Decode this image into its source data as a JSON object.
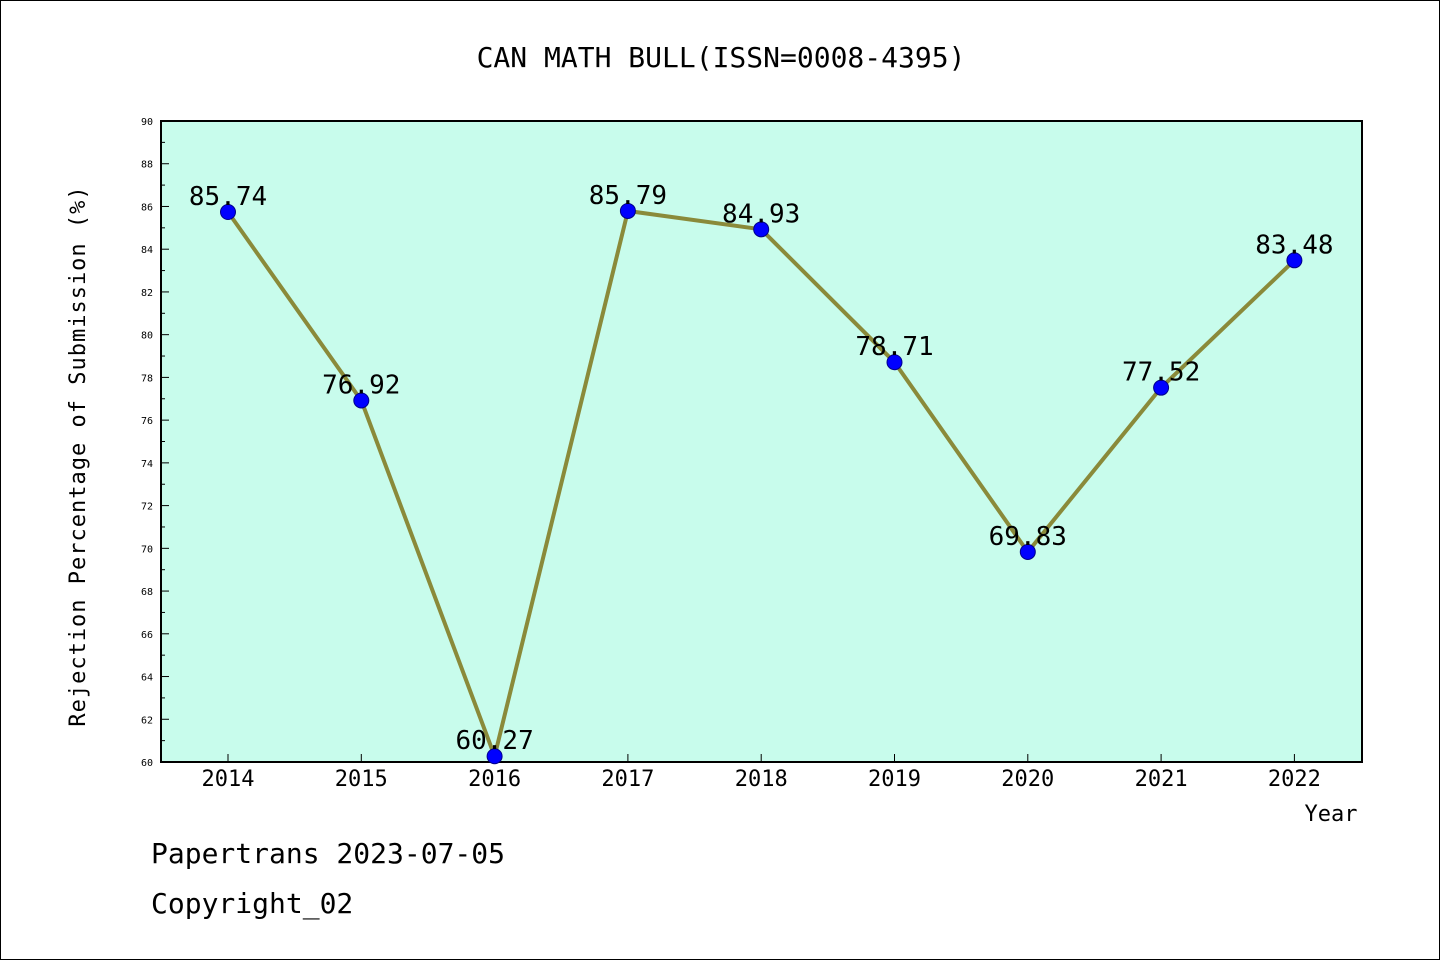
{
  "colors": {
    "plot_background": "#c8fcec",
    "line": "#8a8a3a",
    "marker": "#0000ff"
  },
  "footer": {
    "line1": "Papertrans 2023-07-05",
    "line2": "Copyright_02"
  },
  "chart_data": {
    "type": "line",
    "title": "CAN MATH BULL(ISSN=0008-4395)",
    "xlabel": "Year",
    "ylabel": "Rejection Percentage of Submission (%)",
    "ylim": [
      60,
      90
    ],
    "y_ticks": [
      "60",
      "62",
      "64",
      "66",
      "68",
      "70",
      "72",
      "74",
      "76",
      "78",
      "80",
      "82",
      "84",
      "86",
      "88",
      "90"
    ],
    "categories": [
      "2014",
      "2015",
      "2016",
      "2017",
      "2018",
      "2019",
      "2020",
      "2021",
      "2022"
    ],
    "values": [
      85.74,
      76.92,
      60.27,
      85.79,
      84.93,
      78.71,
      69.83,
      77.52,
      83.48
    ],
    "data_labels": [
      "85.74",
      "76.92",
      "60.27",
      "85.79",
      "84.93",
      "78.71",
      "69.83",
      "77.52",
      "83.48"
    ],
    "grid": false,
    "markers": "circle"
  }
}
